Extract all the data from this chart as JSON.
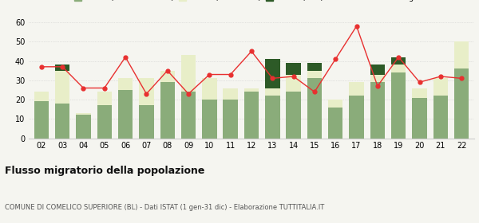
{
  "years": [
    "02",
    "03",
    "04",
    "05",
    "06",
    "07",
    "08",
    "09",
    "10",
    "11",
    "12",
    "13",
    "14",
    "15",
    "16",
    "17",
    "18",
    "19",
    "20",
    "21",
    "22"
  ],
  "iscritti_altri_comuni": [
    19,
    18,
    12,
    17,
    25,
    17,
    29,
    24,
    20,
    20,
    24,
    22,
    24,
    31,
    16,
    22,
    29,
    34,
    21,
    22,
    36
  ],
  "iscritti_estero": [
    5,
    17,
    1,
    7,
    6,
    14,
    6,
    19,
    11,
    6,
    2,
    4,
    9,
    4,
    4,
    7,
    4,
    4,
    5,
    9,
    14
  ],
  "iscritti_altri": [
    0,
    3,
    0,
    0,
    0,
    0,
    0,
    0,
    0,
    0,
    0,
    15,
    6,
    4,
    0,
    0,
    5,
    4,
    0,
    0,
    0
  ],
  "cancellati": [
    37,
    37,
    26,
    26,
    42,
    23,
    35,
    23,
    33,
    33,
    45,
    31,
    32,
    24,
    41,
    58,
    27,
    42,
    29,
    32,
    31
  ],
  "color_comuni": "#8aac7a",
  "color_estero": "#e8eec8",
  "color_altri": "#2d5a27",
  "color_cancellati": "#e83030",
  "ylim": [
    0,
    60
  ],
  "yticks": [
    0,
    10,
    20,
    30,
    40,
    50,
    60
  ],
  "title": "Flusso migratorio della popolazione",
  "subtitle": "COMUNE DI COMELICO SUPERIORE (BL) - Dati ISTAT (1 gen-31 dic) - Elaborazione TUTTITALIA.IT",
  "bg_color": "#f5f5f0"
}
